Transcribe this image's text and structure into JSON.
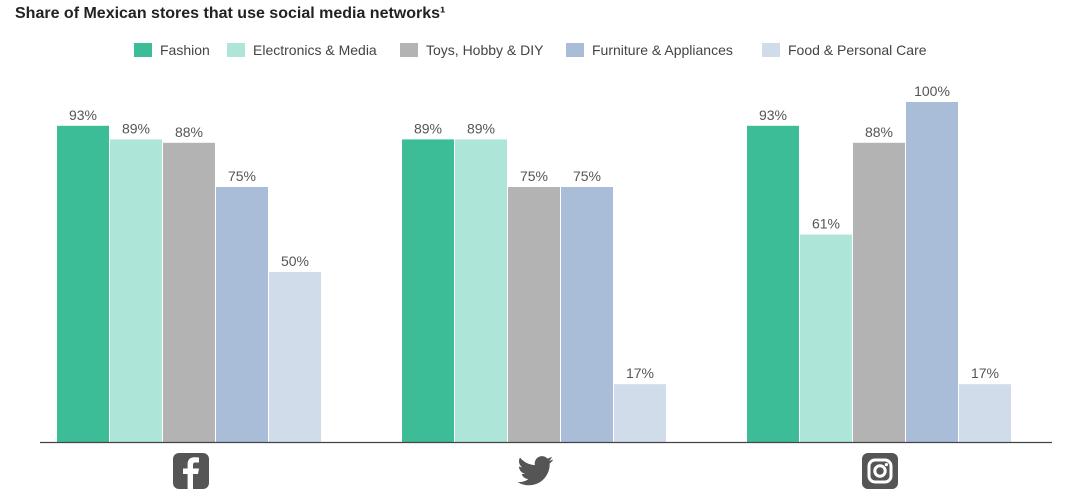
{
  "title": "Share of Mexican stores that use social media networks¹",
  "chart_data": {
    "type": "bar",
    "title": "Share of Mexican stores that use social media networks¹",
    "categories": [
      "facebook-icon",
      "twitter-icon",
      "instagram-icon"
    ],
    "series": [
      {
        "name": "Fashion",
        "color": "#3dbd97",
        "values": [
          93,
          89,
          93
        ],
        "labels": [
          "93%",
          "89%",
          "93%"
        ]
      },
      {
        "name": "Electronics & Media",
        "color": "#ade5d8",
        "values": [
          89,
          89,
          61
        ],
        "labels": [
          "89%",
          "89%",
          "61%"
        ]
      },
      {
        "name": "Toys, Hobby & DIY",
        "color": "#b3b3b3",
        "values": [
          88,
          75,
          88
        ],
        "labels": [
          "88%",
          "75%",
          "88%"
        ]
      },
      {
        "name": "Furniture & Appliances",
        "color": "#a9bcd8",
        "values": [
          75,
          75,
          100
        ],
        "labels": [
          "75%",
          "75%",
          "100%"
        ]
      },
      {
        "name": "Food & Personal Care",
        "color": "#d0dce9",
        "values": [
          50,
          17,
          17
        ],
        "labels": [
          "50%",
          "17%",
          "17%"
        ]
      }
    ],
    "ylim": [
      0,
      100
    ],
    "grid": false,
    "legend": "top"
  }
}
